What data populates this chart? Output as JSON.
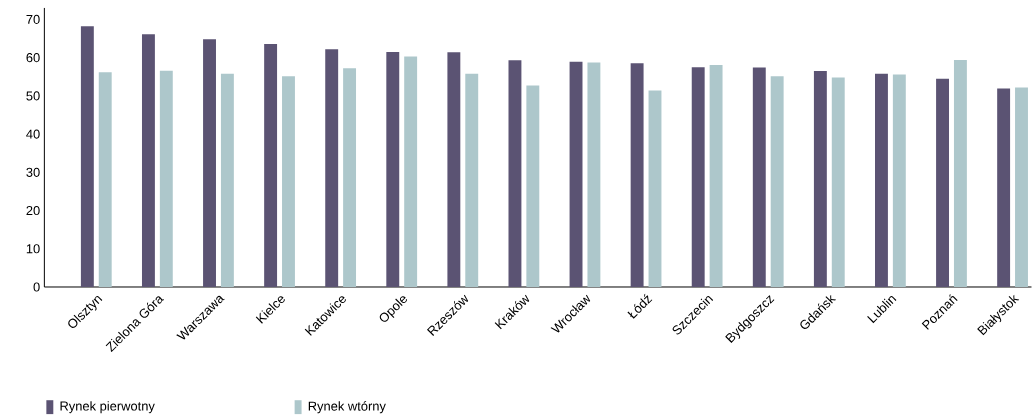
{
  "chart_data": {
    "type": "bar",
    "categories": [
      "Olsztyn",
      "Zielona Góra",
      "Warszawa",
      "Kielce",
      "Katowice",
      "Opole",
      "Rzeszów",
      "Kraków",
      "Wrocław",
      "Łódź",
      "Szczecin",
      "Bydgoszcz",
      "Gdańsk",
      "Lublin",
      "Poznań",
      "Białystok"
    ],
    "series": [
      {
        "name": "Rynek pierwotny",
        "color": "#5b5373",
        "values": [
          68.2,
          66.1,
          64.8,
          63.6,
          62.2,
          61.5,
          61.4,
          59.3,
          58.9,
          58.5,
          57.5,
          57.4,
          56.5,
          55.8,
          54.5,
          51.9
        ]
      },
      {
        "name": "Rynek wtórny",
        "color": "#adc7cb",
        "values": [
          56.2,
          56.6,
          55.8,
          55.1,
          57.2,
          60.3,
          55.8,
          52.7,
          58.7,
          51.4,
          58.1,
          55.1,
          54.8,
          55.6,
          59.4,
          52.2
        ]
      }
    ],
    "ylim": [
      0,
      73
    ],
    "yticks": [
      0,
      10,
      20,
      30,
      40,
      50,
      60,
      70
    ],
    "grid": false,
    "legend": "bottom left"
  }
}
